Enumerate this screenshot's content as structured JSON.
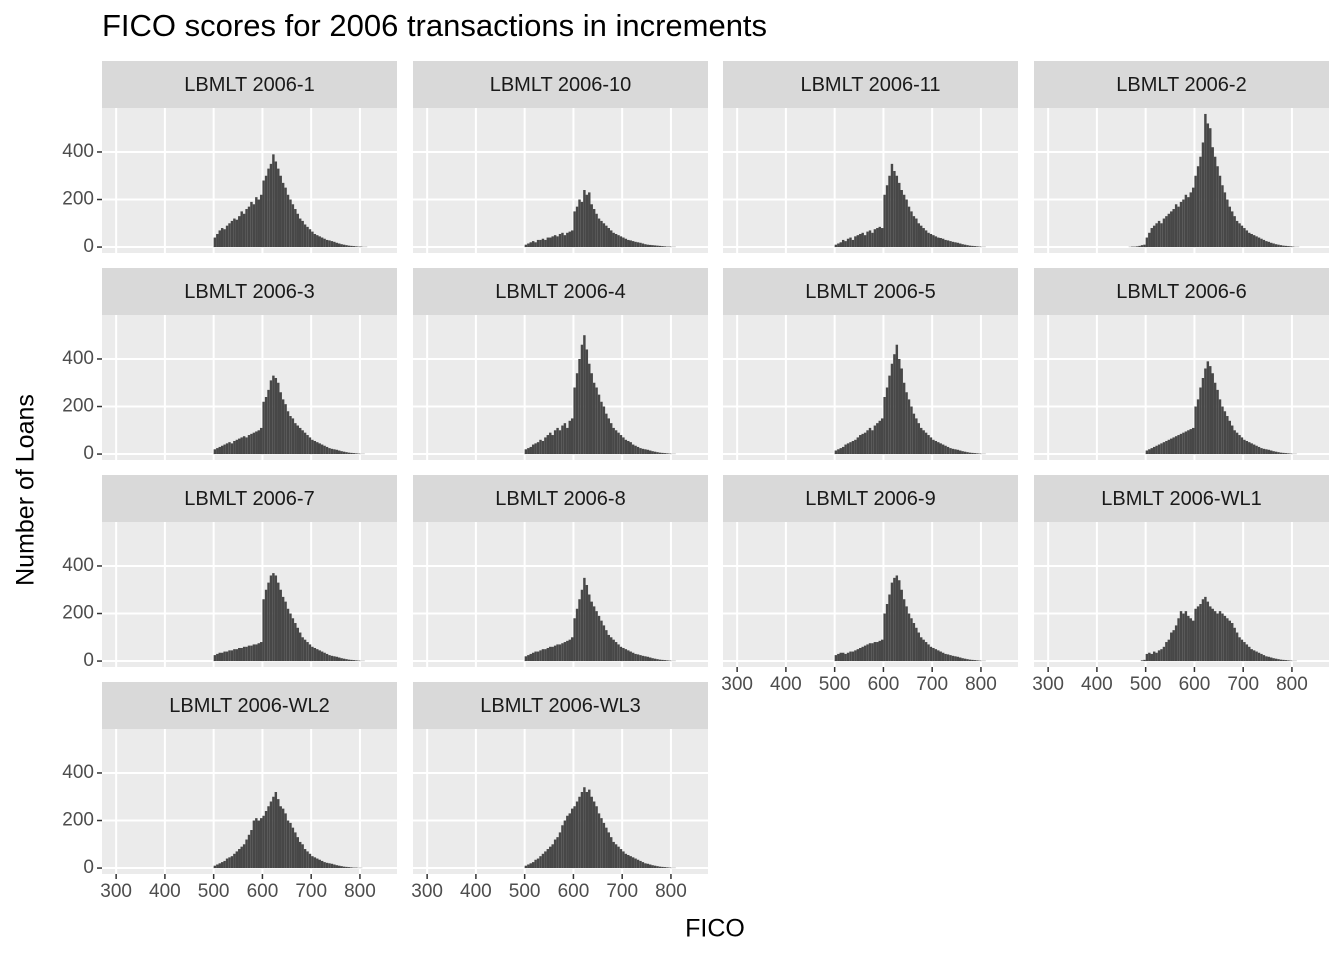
{
  "chart_data": {
    "type": "histogram",
    "title": "FICO scores for 2006 transactions in increments",
    "x_label": "FICO",
    "y_label": "Number of Loans",
    "color": "#474747",
    "xlim": [
      271,
      876
    ],
    "xticks": [
      300,
      400,
      500,
      600,
      700,
      800
    ],
    "ylim": [
      -25,
      585
    ],
    "yticks": [
      0,
      200,
      400
    ],
    "grid": true,
    "bins": [
      460,
      465,
      470,
      475,
      480,
      485,
      490,
      495,
      500,
      505,
      510,
      515,
      520,
      525,
      530,
      535,
      540,
      545,
      550,
      555,
      560,
      565,
      570,
      575,
      580,
      585,
      590,
      595,
      600,
      605,
      610,
      615,
      620,
      625,
      630,
      635,
      640,
      645,
      650,
      655,
      660,
      665,
      670,
      675,
      680,
      685,
      690,
      695,
      700,
      705,
      710,
      715,
      720,
      725,
      730,
      735,
      740,
      745,
      750,
      755,
      760,
      765,
      770,
      775,
      780,
      785,
      790,
      795,
      800,
      805,
      810,
      815,
      820,
      825,
      830
    ],
    "panels": [
      {
        "name": "LBMLT 2006-1",
        "values": [
          0,
          0,
          0,
          0,
          0,
          0,
          0,
          0,
          40,
          55,
          70,
          80,
          75,
          90,
          100,
          110,
          120,
          115,
          130,
          150,
          140,
          160,
          170,
          190,
          180,
          210,
          200,
          220,
          280,
          300,
          330,
          350,
          390,
          360,
          330,
          300,
          270,
          250,
          220,
          200,
          180,
          160,
          140,
          120,
          110,
          95,
          85,
          75,
          65,
          55,
          50,
          45,
          40,
          35,
          30,
          28,
          25,
          22,
          18,
          15,
          12,
          10,
          8,
          6,
          5,
          4,
          3,
          2,
          2,
          1,
          1,
          0,
          0,
          0
        ]
      },
      {
        "name": "LBMLT 2006-10",
        "values": [
          0,
          0,
          0,
          0,
          0,
          0,
          0,
          0,
          10,
          15,
          20,
          25,
          20,
          30,
          30,
          35,
          30,
          40,
          40,
          45,
          50,
          45,
          55,
          60,
          50,
          60,
          65,
          70,
          150,
          170,
          200,
          190,
          240,
          220,
          230,
          180,
          160,
          140,
          120,
          110,
          100,
          90,
          80,
          70,
          60,
          55,
          50,
          45,
          40,
          35,
          30,
          28,
          25,
          22,
          20,
          18,
          15,
          12,
          10,
          9,
          8,
          7,
          6,
          5,
          4,
          3,
          2,
          2,
          1,
          1,
          0,
          0,
          0,
          0
        ]
      },
      {
        "name": "LBMLT 2006-11",
        "values": [
          0,
          0,
          0,
          0,
          0,
          0,
          0,
          0,
          10,
          15,
          20,
          30,
          25,
          35,
          40,
          30,
          45,
          50,
          55,
          60,
          50,
          65,
          70,
          60,
          75,
          80,
          85,
          80,
          220,
          260,
          300,
          350,
          320,
          300,
          270,
          240,
          220,
          200,
          170,
          150,
          130,
          120,
          100,
          90,
          80,
          70,
          60,
          55,
          50,
          45,
          40,
          38,
          35,
          30,
          28,
          25,
          22,
          20,
          18,
          15,
          12,
          10,
          8,
          6,
          5,
          4,
          3,
          2,
          1,
          1,
          0,
          0,
          0,
          0
        ]
      },
      {
        "name": "LBMLT 2006-2",
        "values": [
          0,
          1,
          2,
          2,
          3,
          5,
          8,
          10,
          40,
          60,
          80,
          90,
          100,
          110,
          100,
          120,
          130,
          140,
          150,
          160,
          180,
          170,
          190,
          200,
          220,
          210,
          230,
          250,
          300,
          340,
          380,
          440,
          560,
          520,
          500,
          420,
          380,
          340,
          300,
          260,
          230,
          200,
          170,
          150,
          130,
          110,
          100,
          90,
          80,
          70,
          60,
          55,
          50,
          45,
          40,
          35,
          30,
          25,
          22,
          18,
          15,
          12,
          10,
          8,
          6,
          5,
          4,
          3,
          2,
          1,
          1,
          0,
          0,
          0
        ]
      },
      {
        "name": "LBMLT 2006-3",
        "values": [
          0,
          0,
          0,
          0,
          0,
          0,
          0,
          0,
          20,
          25,
          30,
          35,
          40,
          45,
          50,
          45,
          55,
          60,
          65,
          70,
          75,
          70,
          80,
          85,
          90,
          95,
          100,
          110,
          220,
          240,
          270,
          310,
          330,
          320,
          300,
          260,
          230,
          210,
          180,
          160,
          150,
          130,
          120,
          110,
          100,
          90,
          80,
          70,
          60,
          55,
          50,
          45,
          40,
          35,
          30,
          25,
          22,
          20,
          18,
          15,
          12,
          10,
          8,
          6,
          5,
          4,
          3,
          2,
          1,
          1,
          0,
          0,
          0,
          0
        ]
      },
      {
        "name": "LBMLT 2006-4",
        "values": [
          0,
          0,
          0,
          0,
          0,
          0,
          0,
          0,
          20,
          25,
          30,
          40,
          45,
          50,
          60,
          55,
          70,
          80,
          90,
          80,
          100,
          110,
          100,
          120,
          130,
          110,
          140,
          150,
          280,
          340,
          400,
          460,
          500,
          440,
          380,
          340,
          300,
          280,
          250,
          220,
          200,
          170,
          150,
          130,
          110,
          100,
          90,
          80,
          70,
          60,
          55,
          50,
          40,
          35,
          30,
          25,
          22,
          20,
          18,
          15,
          12,
          10,
          8,
          6,
          5,
          4,
          3,
          2,
          1,
          1,
          0,
          0,
          0,
          0
        ]
      },
      {
        "name": "LBMLT 2006-5",
        "values": [
          0,
          0,
          0,
          0,
          0,
          0,
          0,
          0,
          15,
          20,
          25,
          30,
          40,
          45,
          50,
          55,
          60,
          70,
          80,
          85,
          90,
          100,
          110,
          100,
          120,
          130,
          140,
          150,
          240,
          280,
          330,
          380,
          420,
          460,
          400,
          360,
          300,
          260,
          230,
          200,
          170,
          150,
          130,
          110,
          100,
          90,
          80,
          70,
          60,
          55,
          50,
          45,
          40,
          35,
          30,
          25,
          22,
          20,
          18,
          15,
          12,
          10,
          8,
          6,
          5,
          4,
          3,
          2,
          1,
          1,
          0,
          0,
          0,
          0
        ]
      },
      {
        "name": "LBMLT 2006-6",
        "values": [
          0,
          0,
          0,
          0,
          0,
          0,
          0,
          0,
          15,
          20,
          25,
          30,
          35,
          40,
          45,
          50,
          55,
          60,
          65,
          70,
          75,
          80,
          85,
          90,
          95,
          100,
          105,
          110,
          200,
          230,
          280,
          320,
          360,
          390,
          370,
          340,
          300,
          270,
          230,
          200,
          180,
          160,
          140,
          120,
          100,
          90,
          80,
          70,
          60,
          55,
          50,
          45,
          40,
          35,
          30,
          25,
          22,
          20,
          18,
          15,
          12,
          10,
          8,
          6,
          5,
          4,
          3,
          2,
          1,
          1,
          0,
          0,
          0,
          0
        ]
      },
      {
        "name": "LBMLT 2006-7",
        "values": [
          0,
          0,
          0,
          0,
          0,
          0,
          0,
          0,
          25,
          30,
          35,
          35,
          40,
          40,
          45,
          45,
          50,
          50,
          55,
          55,
          60,
          60,
          65,
          65,
          70,
          70,
          75,
          80,
          260,
          300,
          330,
          360,
          370,
          360,
          330,
          300,
          270,
          250,
          220,
          200,
          180,
          160,
          140,
          120,
          100,
          90,
          80,
          70,
          60,
          55,
          50,
          45,
          40,
          35,
          30,
          25,
          22,
          20,
          18,
          15,
          12,
          10,
          8,
          6,
          5,
          4,
          3,
          2,
          1,
          1,
          0,
          0,
          0,
          0
        ]
      },
      {
        "name": "LBMLT 2006-8",
        "values": [
          0,
          0,
          0,
          0,
          0,
          0,
          0,
          0,
          20,
          25,
          30,
          35,
          40,
          40,
          45,
          50,
          50,
          55,
          60,
          60,
          65,
          70,
          70,
          75,
          80,
          85,
          90,
          100,
          180,
          220,
          260,
          300,
          350,
          320,
          280,
          250,
          230,
          210,
          190,
          170,
          150,
          130,
          110,
          100,
          90,
          80,
          70,
          60,
          55,
          50,
          45,
          40,
          35,
          30,
          28,
          25,
          22,
          20,
          18,
          15,
          12,
          10,
          8,
          6,
          5,
          4,
          3,
          2,
          1,
          1,
          0,
          0,
          0,
          0
        ]
      },
      {
        "name": "LBMLT 2006-9",
        "values": [
          0,
          0,
          0,
          0,
          0,
          0,
          0,
          0,
          25,
          30,
          35,
          35,
          30,
          35,
          40,
          40,
          45,
          50,
          55,
          60,
          65,
          70,
          75,
          75,
          80,
          80,
          85,
          90,
          200,
          240,
          280,
          330,
          350,
          360,
          340,
          300,
          260,
          230,
          200,
          180,
          160,
          140,
          120,
          100,
          90,
          80,
          70,
          60,
          55,
          50,
          45,
          40,
          35,
          30,
          28,
          25,
          22,
          20,
          18,
          15,
          12,
          10,
          8,
          6,
          5,
          4,
          3,
          2,
          1,
          1,
          0,
          0,
          0,
          0
        ]
      },
      {
        "name": "LBMLT 2006-WL1",
        "values": [
          0,
          0,
          0,
          0,
          0,
          0,
          3,
          5,
          30,
          35,
          30,
          40,
          35,
          45,
          50,
          60,
          80,
          90,
          120,
          130,
          150,
          180,
          210,
          200,
          210,
          190,
          180,
          170,
          220,
          230,
          240,
          260,
          270,
          250,
          230,
          220,
          210,
          200,
          210,
          200,
          190,
          180,
          170,
          160,
          140,
          120,
          100,
          90,
          80,
          70,
          60,
          50,
          45,
          40,
          35,
          30,
          25,
          20,
          18,
          15,
          12,
          10,
          8,
          6,
          5,
          4,
          3,
          2,
          1,
          1,
          0,
          0,
          0,
          0
        ]
      },
      {
        "name": "LBMLT 2006-WL2",
        "values": [
          0,
          0,
          0,
          0,
          0,
          0,
          0,
          0,
          10,
          15,
          20,
          25,
          30,
          40,
          45,
          50,
          60,
          70,
          80,
          90,
          100,
          120,
          140,
          160,
          200,
          210,
          200,
          210,
          220,
          240,
          260,
          280,
          300,
          320,
          290,
          260,
          250,
          230,
          200,
          190,
          170,
          150,
          130,
          110,
          100,
          80,
          70,
          60,
          50,
          45,
          40,
          35,
          30,
          25,
          22,
          20,
          18,
          15,
          12,
          10,
          8,
          6,
          5,
          4,
          3,
          2,
          2,
          1,
          1,
          0,
          0,
          0,
          0,
          0
        ]
      },
      {
        "name": "LBMLT 2006-WL3",
        "values": [
          0,
          0,
          0,
          0,
          0,
          0,
          0,
          0,
          10,
          15,
          20,
          25,
          35,
          40,
          50,
          60,
          70,
          80,
          90,
          100,
          120,
          130,
          150,
          180,
          200,
          220,
          230,
          250,
          260,
          280,
          300,
          320,
          340,
          320,
          330,
          300,
          280,
          260,
          230,
          210,
          190,
          170,
          150,
          130,
          110,
          100,
          90,
          80,
          70,
          60,
          55,
          50,
          45,
          40,
          35,
          30,
          25,
          20,
          18,
          15,
          12,
          10,
          8,
          6,
          5,
          4,
          3,
          2,
          1,
          1,
          0,
          0,
          0,
          0
        ]
      }
    ]
  }
}
